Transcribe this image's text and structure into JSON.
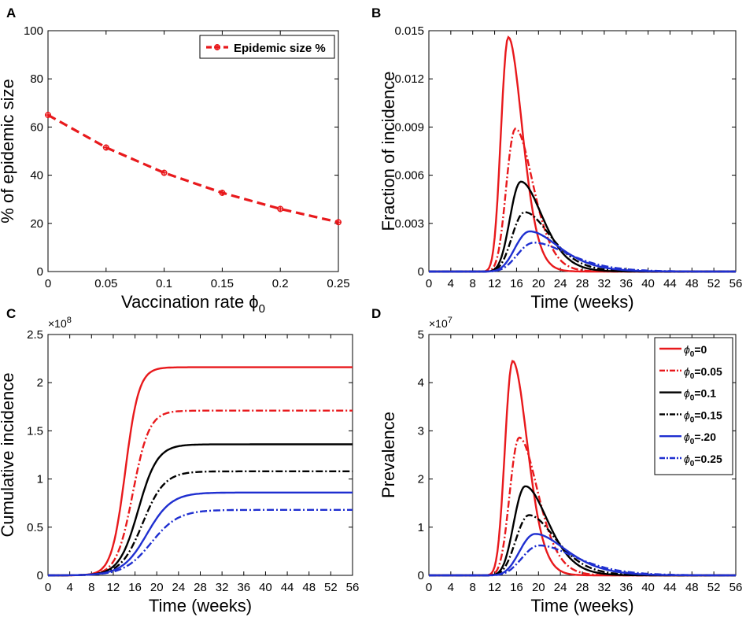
{
  "colors": {
    "red": "#e8191c",
    "black": "#000000",
    "blue": "#1f2fd0",
    "marker": "#e8191c"
  },
  "chart_data": [
    {
      "panel": "A",
      "type": "line",
      "xlabel": "Vaccination rate ϕ",
      "xlabel_sub": "0",
      "ylabel": "% of epidemic size",
      "xlim": [
        0,
        0.25
      ],
      "ylim": [
        0,
        100
      ],
      "xticks": [
        "0",
        "0.05",
        "0.1",
        "0.15",
        "0.2",
        "0.25"
      ],
      "yticks": [
        "0",
        "20",
        "40",
        "60",
        "80",
        "100"
      ],
      "legend": [
        "Epidemic size %"
      ],
      "x": [
        0,
        0.05,
        0.1,
        0.15,
        0.2,
        0.25
      ],
      "y": [
        65,
        51.5,
        41,
        32.7,
        26,
        20.5
      ]
    },
    {
      "panel": "B",
      "type": "line",
      "xlabel": "Time (weeks)",
      "ylabel": "Fraction of incidence",
      "xlim": [
        0,
        56
      ],
      "ylim": [
        0,
        0.015
      ],
      "xticks": [
        "0",
        "4",
        "8",
        "12",
        "16",
        "20",
        "24",
        "28",
        "32",
        "36",
        "40",
        "44",
        "48",
        "52",
        "56"
      ],
      "yticks": [
        "0",
        "0.003",
        "0.006",
        "0.009",
        "0.012",
        "0.015"
      ],
      "series": [
        {
          "name": "ϕ0=0",
          "peak": 0.0146,
          "peak_week": 14.5
        },
        {
          "name": "ϕ0=0.05",
          "peak": 0.0089,
          "peak_week": 15.8
        },
        {
          "name": "ϕ0=0.1",
          "peak": 0.0056,
          "peak_week": 16.8
        },
        {
          "name": "ϕ0=0.15",
          "peak": 0.0037,
          "peak_week": 17.5
        },
        {
          "name": "ϕ0=.20",
          "peak": 0.0025,
          "peak_week": 18.4
        },
        {
          "name": "ϕ0=0.25",
          "peak": 0.0018,
          "peak_week": 19.2
        }
      ]
    },
    {
      "panel": "C",
      "type": "line",
      "xlabel": "Time (weeks)",
      "ylabel": "Cumulative incidence",
      "scale": "×10",
      "scale_exp": "8",
      "xlim": [
        0,
        56
      ],
      "ylim": [
        0,
        2.5
      ],
      "xticks": [
        "0",
        "4",
        "8",
        "12",
        "16",
        "20",
        "24",
        "28",
        "32",
        "36",
        "40",
        "44",
        "48",
        "52",
        "56"
      ],
      "yticks": [
        "0",
        "0.5",
        "1",
        "1.5",
        "2",
        "2.5"
      ],
      "series": [
        {
          "name": "ϕ0=0",
          "final": 2.16,
          "mid_week": 14.2
        },
        {
          "name": "ϕ0=0.05",
          "final": 1.71,
          "mid_week": 15.6
        },
        {
          "name": "ϕ0=0.1",
          "final": 1.36,
          "mid_week": 16.6
        },
        {
          "name": "ϕ0=0.15",
          "final": 1.08,
          "mid_week": 17.4
        },
        {
          "name": "ϕ0=.20",
          "final": 0.86,
          "mid_week": 18.2
        },
        {
          "name": "ϕ0=0.25",
          "final": 0.68,
          "mid_week": 19.0
        }
      ]
    },
    {
      "panel": "D",
      "type": "line",
      "xlabel": "Time (weeks)",
      "ylabel": "Prevalence",
      "scale": "×10",
      "scale_exp": "7",
      "xlim": [
        0,
        56
      ],
      "ylim": [
        0,
        5
      ],
      "xticks": [
        "0",
        "4",
        "8",
        "12",
        "16",
        "20",
        "24",
        "28",
        "32",
        "36",
        "40",
        "44",
        "48",
        "52",
        "56"
      ],
      "yticks": [
        "0",
        "1",
        "2",
        "3",
        "4",
        "5"
      ],
      "legend_position": "top-right",
      "series": [
        {
          "name": "ϕ0=0",
          "peak": 4.45,
          "peak_week": 15.3
        },
        {
          "name": "ϕ0=0.05",
          "peak": 2.86,
          "peak_week": 16.5
        },
        {
          "name": "ϕ0=0.1",
          "peak": 1.85,
          "peak_week": 17.6
        },
        {
          "name": "ϕ0=0.15",
          "peak": 1.25,
          "peak_week": 18.3
        },
        {
          "name": "ϕ0=.20",
          "peak": 0.86,
          "peak_week": 19.4
        },
        {
          "name": "ϕ0=0.25",
          "peak": 0.62,
          "peak_week": 20.2
        }
      ]
    }
  ],
  "legend_labels": [
    {
      "sym": "ϕ",
      "sub": "0",
      "val": "=0"
    },
    {
      "sym": "ϕ",
      "sub": "0",
      "val": "=0.05"
    },
    {
      "sym": "ϕ",
      "sub": "0",
      "val": "=0.1"
    },
    {
      "sym": "ϕ",
      "sub": "0",
      "val": "=0.15"
    },
    {
      "sym": "ϕ",
      "sub": "0",
      "val": "=.20"
    },
    {
      "sym": "ϕ",
      "sub": "0",
      "val": "=0.25"
    }
  ],
  "panel_labels": [
    "A",
    "B",
    "C",
    "D"
  ]
}
